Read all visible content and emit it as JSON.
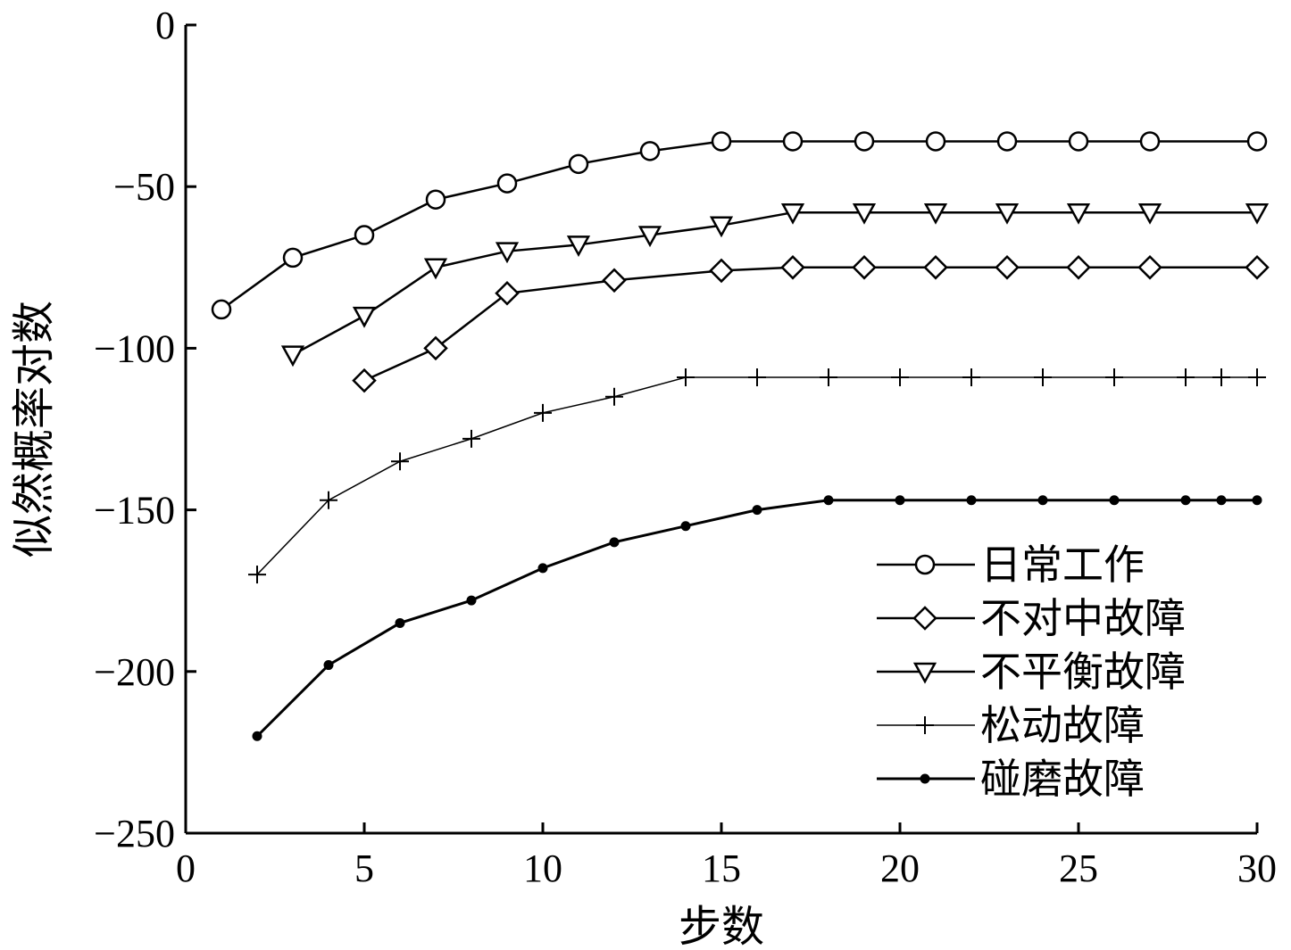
{
  "chart_data": {
    "type": "line",
    "xlabel": "步数",
    "ylabel": "似然概率对数",
    "xlim": [
      0,
      30
    ],
    "ylim": [
      -250,
      0
    ],
    "x_ticks": [
      0,
      5,
      10,
      15,
      20,
      25,
      30
    ],
    "y_ticks": [
      0,
      -50,
      -100,
      -150,
      -200,
      -250
    ],
    "y_tick_labels": [
      "0",
      "−50",
      "−100",
      "−150",
      "−200",
      "−250"
    ],
    "grid": false,
    "legend_position": "bottom-right",
    "series": [
      {
        "name": "日常工作",
        "marker": "circle",
        "x": [
          1,
          3,
          5,
          7,
          9,
          11,
          13,
          15,
          17,
          19,
          21,
          23,
          25,
          27,
          30
        ],
        "y": [
          -88,
          -72,
          -65,
          -54,
          -49,
          -43,
          -39,
          -36,
          -36,
          -36,
          -36,
          -36,
          -36,
          -36,
          -36
        ]
      },
      {
        "name": "不对中故障",
        "marker": "diamond",
        "x": [
          5,
          7,
          9,
          12,
          15,
          17,
          19,
          21,
          23,
          25,
          27,
          30
        ],
        "y": [
          -110,
          -100,
          -83,
          -79,
          -76,
          -75,
          -75,
          -75,
          -75,
          -75,
          -75,
          -75
        ]
      },
      {
        "name": "不平衡故障",
        "marker": "triangle-down",
        "x": [
          3,
          5,
          7,
          9,
          11,
          13,
          15,
          17,
          19,
          21,
          23,
          25,
          27,
          30
        ],
        "y": [
          -102,
          -90,
          -75,
          -70,
          -68,
          -65,
          -62,
          -58,
          -58,
          -58,
          -58,
          -58,
          -58,
          -58
        ]
      },
      {
        "name": "松动故障",
        "marker": "plus",
        "x": [
          2,
          4,
          6,
          8,
          10,
          12,
          14,
          16,
          18,
          20,
          22,
          24,
          26,
          28,
          29,
          30
        ],
        "y": [
          -170,
          -147,
          -135,
          -128,
          -120,
          -115,
          -109,
          -109,
          -109,
          -109,
          -109,
          -109,
          -109,
          -109,
          -109,
          -109
        ]
      },
      {
        "name": "碰磨故障",
        "marker": "dot",
        "x": [
          2,
          4,
          6,
          8,
          10,
          12,
          14,
          16,
          18,
          20,
          22,
          24,
          26,
          28,
          29,
          30
        ],
        "y": [
          -220,
          -198,
          -185,
          -178,
          -168,
          -160,
          -155,
          -150,
          -147,
          -147,
          -147,
          -147,
          -147,
          -147,
          -147,
          -147
        ]
      }
    ],
    "legend_order": [
      0,
      1,
      2,
      3,
      4
    ]
  }
}
